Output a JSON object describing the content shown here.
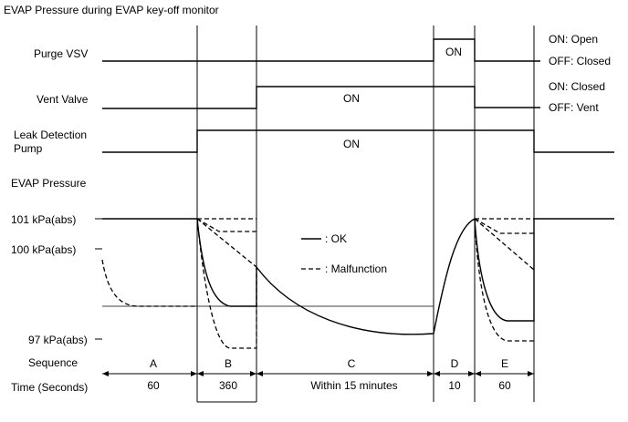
{
  "title": "EVAP Pressure during EVAP key-off monitor",
  "signals": {
    "purge_vsv": {
      "label": "Purge VSV",
      "on_text": "ON",
      "state_on": "ON: Open",
      "state_off": "OFF: Closed"
    },
    "vent_valve": {
      "label": "Vent Valve",
      "on_text": "ON",
      "state_on": "ON: Closed",
      "state_off": "OFF: Vent"
    },
    "leak_detection_pump": {
      "label_line1": "Leak Detection",
      "label_line2": "Pump",
      "on_text": "ON"
    },
    "evap_pressure": {
      "label": "EVAP Pressure"
    }
  },
  "pressure_levels": {
    "p101": "101 kPa(abs)",
    "p100": "100 kPa(abs)",
    "p97": "97 kPa(abs)"
  },
  "legend": {
    "ok": ": OK",
    "malfunction": ": Malfunction"
  },
  "sequence": {
    "label": "Sequence",
    "time_label": "Time (Seconds)",
    "phases": [
      {
        "id": "A",
        "time": "60"
      },
      {
        "id": "B",
        "time": "360"
      },
      {
        "id": "C",
        "time": "Within 15 minutes"
      },
      {
        "id": "D",
        "time": "10"
      },
      {
        "id": "E",
        "time": "60"
      }
    ]
  },
  "colors": {
    "line": "#000000",
    "background": "#ffffff",
    "grid": "#000000"
  }
}
